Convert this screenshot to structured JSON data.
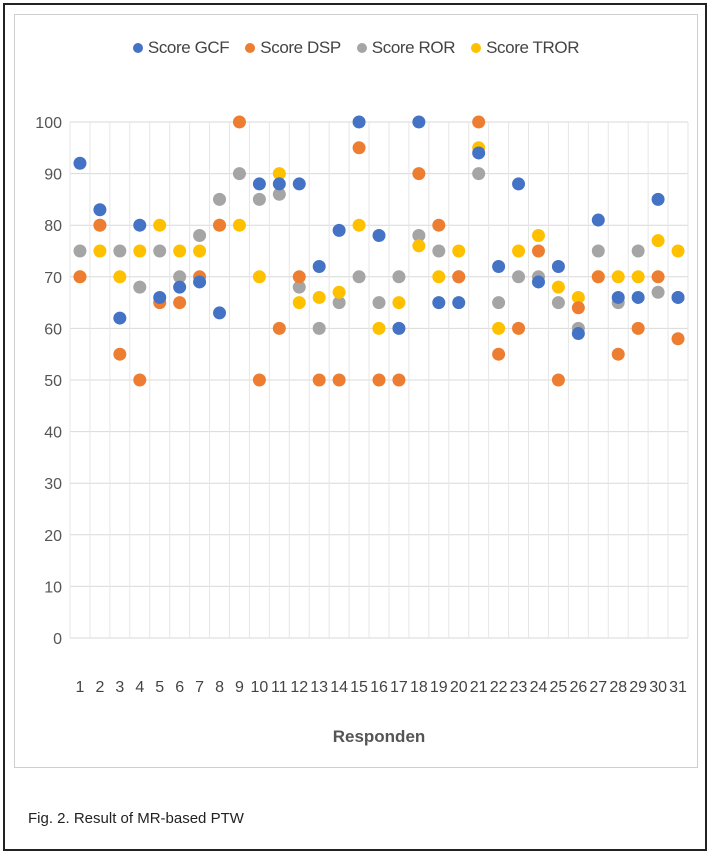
{
  "chart_data": {
    "type": "scatter",
    "x": [
      1,
      2,
      3,
      4,
      5,
      6,
      7,
      8,
      9,
      10,
      11,
      12,
      13,
      14,
      15,
      16,
      17,
      18,
      19,
      20,
      21,
      22,
      23,
      24,
      25,
      26,
      27,
      28,
      29,
      30,
      31
    ],
    "xlabel": "Responden",
    "ylabel": "",
    "ylim": [
      0,
      100
    ],
    "yticks": [
      0,
      10,
      20,
      30,
      40,
      50,
      60,
      70,
      80,
      90,
      100
    ],
    "grid": true,
    "legend_position": "top",
    "series": [
      {
        "name": "Score GCF",
        "color": "#4472c4",
        "values": [
          92,
          83,
          62,
          80,
          66,
          68,
          69,
          63,
          null,
          88,
          88,
          88,
          72,
          79,
          100,
          78,
          60,
          100,
          65,
          65,
          94,
          72,
          88,
          69,
          72,
          59,
          81,
          66,
          66,
          85,
          66
        ]
      },
      {
        "name": "Score DSP",
        "color": "#ed7d31",
        "values": [
          70,
          80,
          55,
          50,
          65,
          65,
          70,
          80,
          100,
          50,
          60,
          70,
          50,
          50,
          95,
          50,
          50,
          90,
          80,
          70,
          100,
          55,
          60,
          75,
          50,
          64,
          70,
          55,
          60,
          70,
          58
        ]
      },
      {
        "name": "Score ROR",
        "color": "#a5a5a5",
        "values": [
          75,
          80,
          75,
          68,
          75,
          70,
          78,
          85,
          90,
          85,
          86,
          68,
          60,
          65,
          70,
          65,
          70,
          78,
          75,
          70,
          90,
          65,
          70,
          70,
          65,
          60,
          75,
          65,
          75,
          67,
          66
        ]
      },
      {
        "name": "Score TROR",
        "color": "#ffc000",
        "values": [
          70,
          75,
          70,
          75,
          80,
          75,
          75,
          80,
          80,
          70,
          90,
          65,
          66,
          67,
          80,
          60,
          65,
          76,
          70,
          75,
          95,
          60,
          75,
          78,
          68,
          66,
          70,
          70,
          70,
          77,
          75
        ]
      }
    ]
  },
  "caption": "Fig. 2. Result of MR-based PTW"
}
